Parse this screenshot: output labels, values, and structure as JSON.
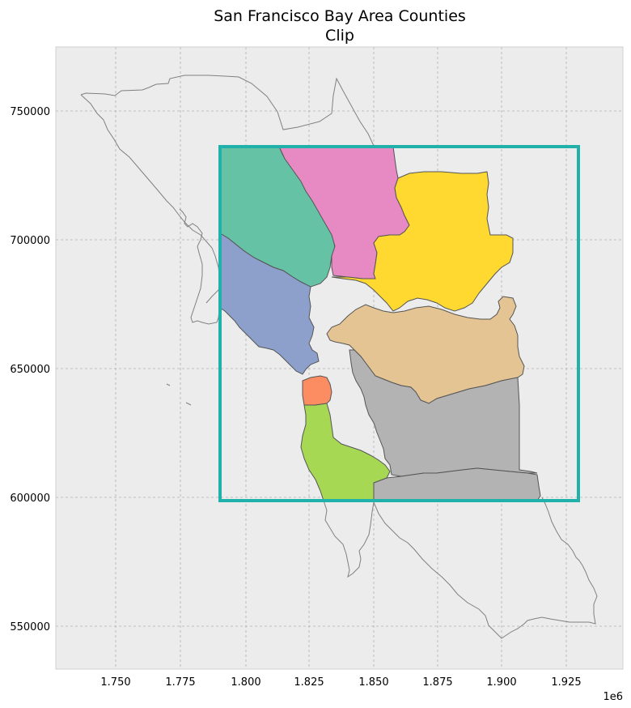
{
  "chart": {
    "title_line1": "San Francisco Bay Area Counties",
    "title_line2": "Clip",
    "x_offset_label": "1e6",
    "x_ticks": [
      "1.750",
      "1.775",
      "1.800",
      "1.825",
      "1.850",
      "1.875",
      "1.900",
      "1.925"
    ],
    "y_ticks": [
      "750000",
      "700000",
      "650000",
      "600000",
      "550000"
    ]
  },
  "colors": {
    "axes_background": "#ececec",
    "clip_box": "#20b2aa",
    "marin": "#8da0cb",
    "sonoma": "#66c2a5",
    "napa": "#e78ac3",
    "solano": "#ffd92f",
    "contra_costa": "#e5c494",
    "alameda_santa_clara": "#b3b3b3",
    "san_francisco": "#fc8d62",
    "san_mateo": "#a6d854"
  },
  "chart_data": {
    "type": "map",
    "title": "San Francisco Bay Area Counties\nClip",
    "x_range": [
      1730000,
      1952000
    ],
    "y_range": [
      534000,
      775000
    ],
    "x_tick_values": [
      1750000,
      1775000,
      1800000,
      1825000,
      1850000,
      1875000,
      1900000,
      1925000
    ],
    "y_tick_values": [
      750000,
      700000,
      650000,
      600000,
      550000
    ],
    "clip_box": {
      "x_min": 1790000,
      "x_max": 1930000,
      "y_min": 599000,
      "y_max": 736000
    },
    "grid": true
  }
}
